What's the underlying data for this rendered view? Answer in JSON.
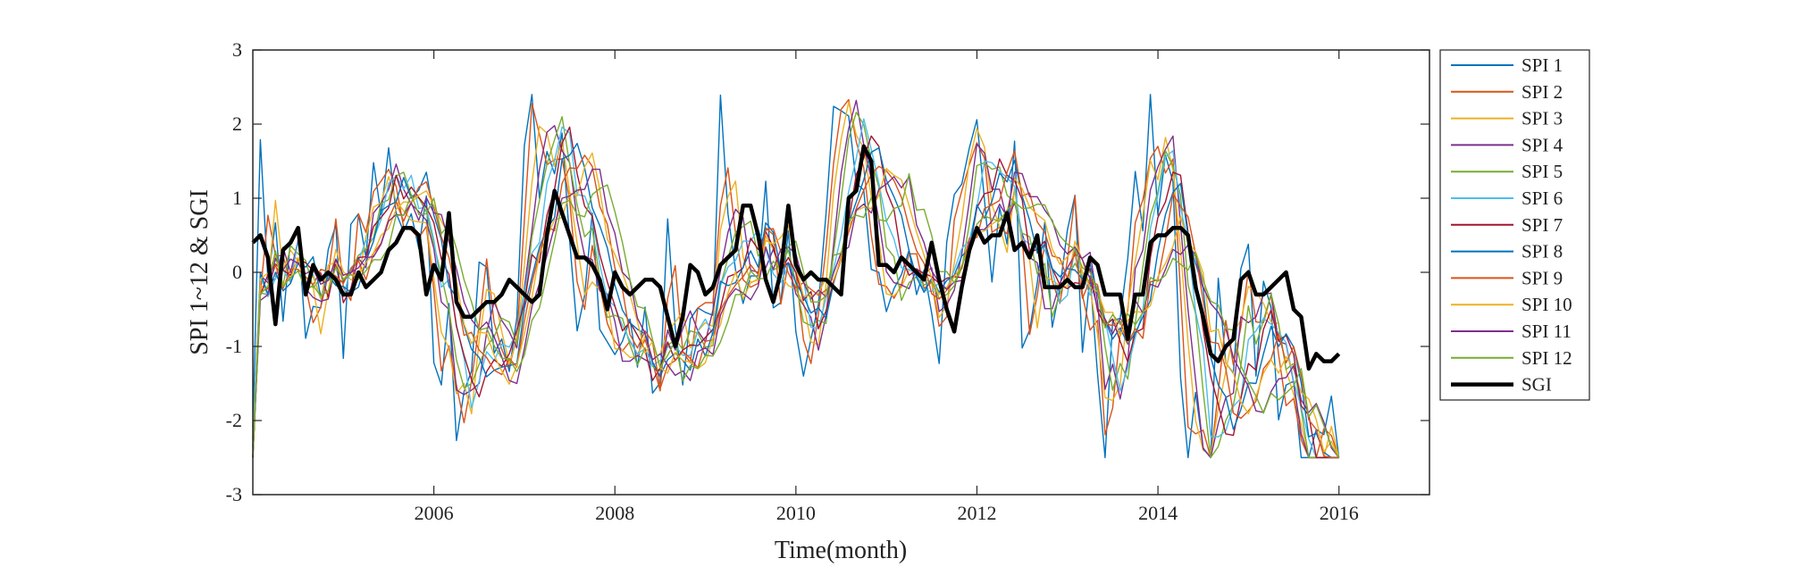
{
  "chart_data": {
    "type": "line",
    "title": "",
    "xlabel": "Time(month)",
    "ylabel": "SPI 1~12 & SGI",
    "xlim": [
      2004,
      2017
    ],
    "ylim": [
      -3,
      3
    ],
    "x_ticks": [
      2006,
      2008,
      2010,
      2012,
      2014,
      2016
    ],
    "y_ticks": [
      -3,
      -2,
      -1,
      0,
      1,
      2,
      3
    ],
    "grid": false,
    "legend_position": "outside-right",
    "x_start": 2004.0,
    "x_step": 0.08333,
    "series": [
      {
        "name": "SPI 1",
        "color": "#0072BD",
        "values": []
      },
      {
        "name": "SPI 2",
        "color": "#D95319",
        "values": []
      },
      {
        "name": "SPI 3",
        "color": "#EDB120",
        "values": []
      },
      {
        "name": "SPI 4",
        "color": "#7E2F8E",
        "values": []
      },
      {
        "name": "SPI 5",
        "color": "#77AC30",
        "values": []
      },
      {
        "name": "SPI 6",
        "color": "#4DBEEE",
        "values": []
      },
      {
        "name": "SPI 7",
        "color": "#A2142F",
        "values": []
      },
      {
        "name": "SPI 8",
        "color": "#0072BD",
        "values": []
      },
      {
        "name": "SPI 9",
        "color": "#D95319",
        "values": []
      },
      {
        "name": "SPI 10",
        "color": "#EDB120",
        "values": []
      },
      {
        "name": "SPI 11",
        "color": "#7E2F8E",
        "values": []
      },
      {
        "name": "SPI 12",
        "color": "#77AC30",
        "values": []
      },
      {
        "name": "SGI",
        "color": "#000000",
        "values": [
          0.4,
          0.5,
          0.2,
          -0.7,
          0.3,
          0.4,
          0.6,
          -0.3,
          0.1,
          -0.1,
          0.0,
          -0.1,
          -0.3,
          -0.3,
          0.0,
          -0.2,
          -0.1,
          0.0,
          0.3,
          0.4,
          0.6,
          0.6,
          0.5,
          -0.3,
          0.1,
          -0.1,
          0.8,
          -0.4,
          -0.6,
          -0.6,
          -0.5,
          -0.4,
          -0.4,
          -0.3,
          -0.1,
          -0.2,
          -0.3,
          -0.4,
          -0.3,
          0.5,
          1.1,
          0.8,
          0.5,
          0.2,
          0.2,
          0.1,
          -0.1,
          -0.5,
          0.0,
          -0.2,
          -0.3,
          -0.2,
          -0.1,
          -0.1,
          -0.2,
          -0.6,
          -1.0,
          -0.6,
          0.1,
          0.0,
          -0.3,
          -0.2,
          0.1,
          0.2,
          0.3,
          0.9,
          0.9,
          0.5,
          -0.1,
          -0.4,
          0.0,
          0.9,
          0.1,
          -0.1,
          0.0,
          -0.1,
          -0.1,
          -0.2,
          -0.3,
          1.0,
          1.1,
          1.7,
          1.5,
          0.1,
          0.1,
          0.0,
          0.2,
          0.1,
          0.0,
          -0.1,
          0.4,
          -0.1,
          -0.5,
          -0.8,
          -0.2,
          0.3,
          0.6,
          0.4,
          0.5,
          0.5,
          0.8,
          0.3,
          0.4,
          0.2,
          0.5,
          -0.2,
          -0.2,
          -0.2,
          -0.1,
          -0.2,
          -0.2,
          0.2,
          0.1,
          -0.3,
          -0.3,
          -0.3,
          -0.9,
          -0.3,
          -0.3,
          0.4,
          0.5,
          0.5,
          0.6,
          0.6,
          0.5,
          -0.2,
          -0.6,
          -1.1,
          -1.2,
          -1.0,
          -0.9,
          -0.1,
          0.0,
          -0.3,
          -0.3,
          -0.2,
          -0.1,
          0.0,
          -0.5,
          -0.6,
          -1.3,
          -1.1,
          -1.2,
          -1.2,
          -1.1
        ]
      }
    ]
  }
}
